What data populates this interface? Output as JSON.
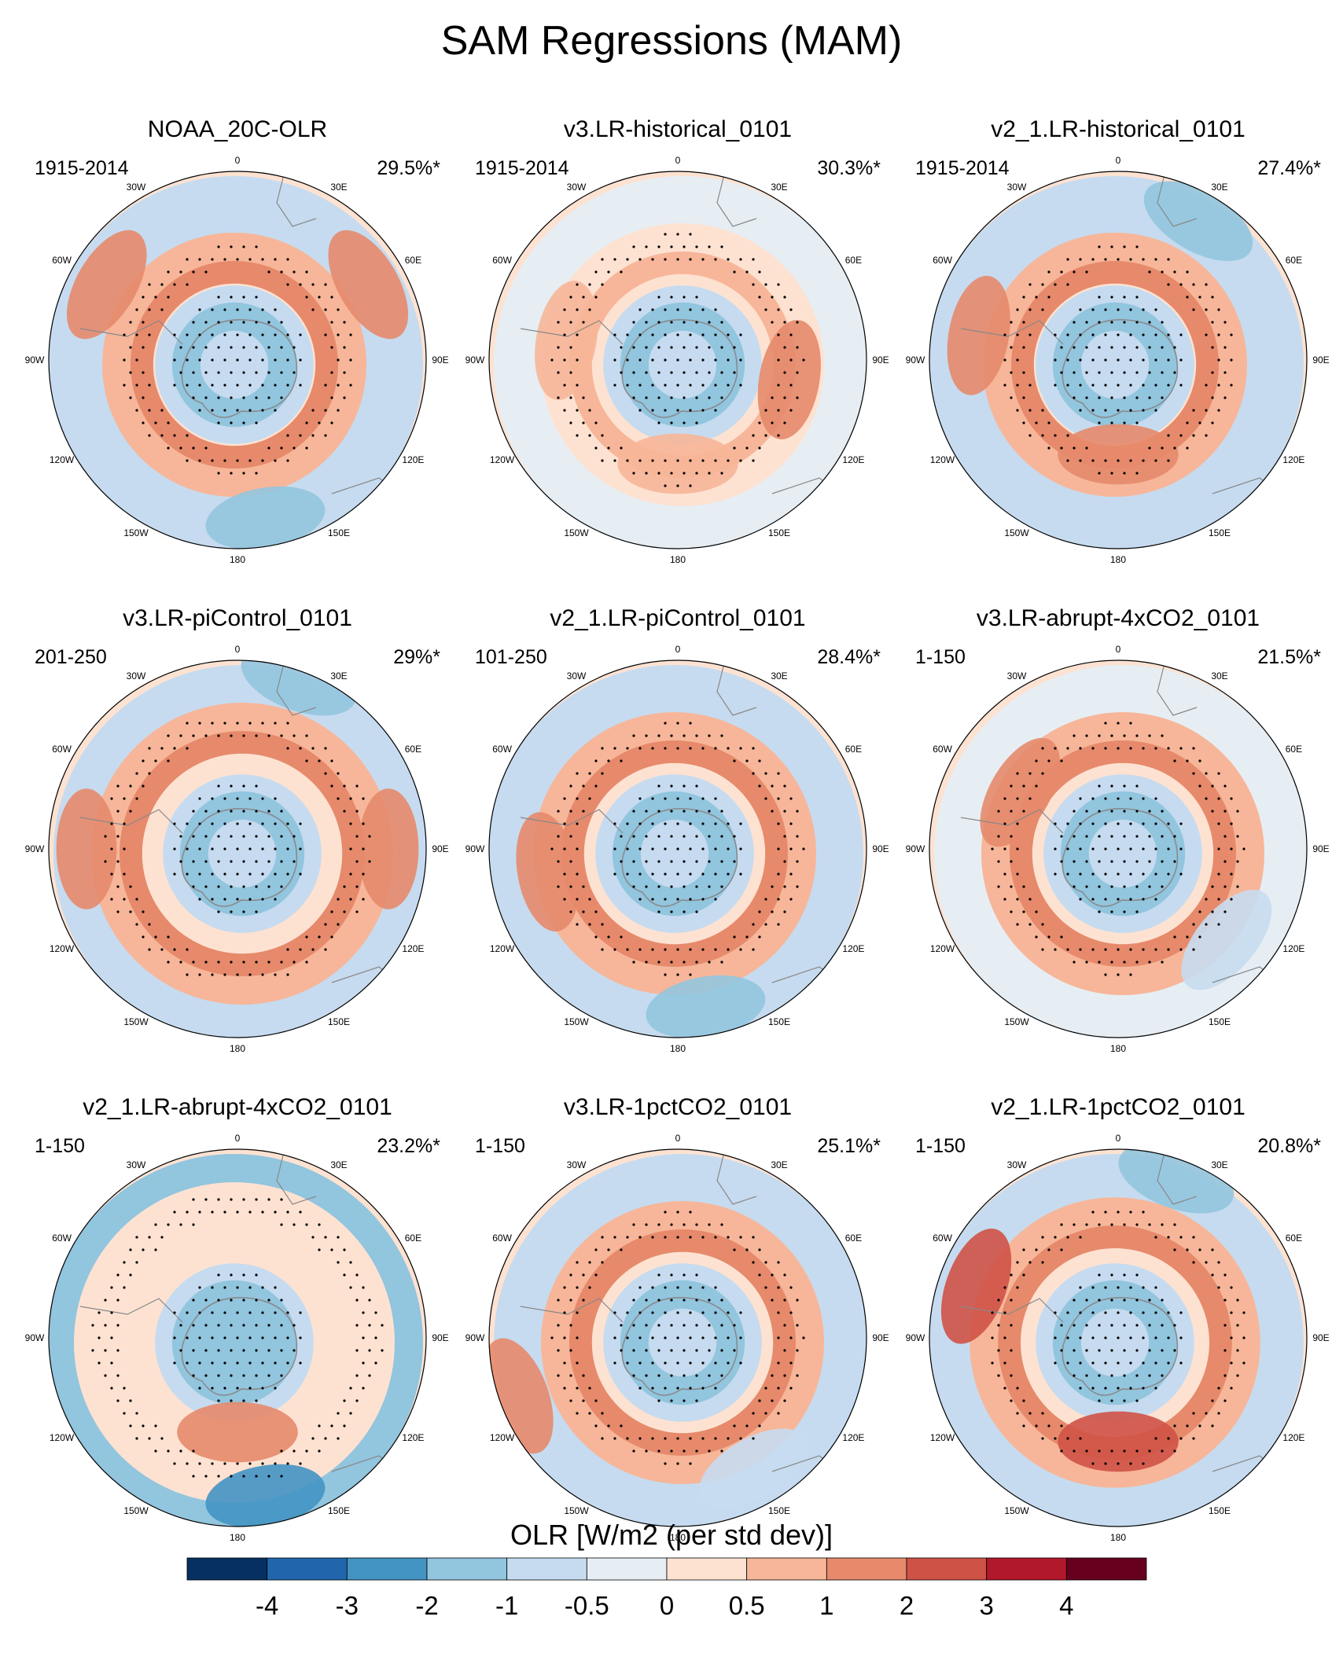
{
  "title": "SAM Regressions (MAM)",
  "colorbar": {
    "label": "OLR [W/m2 (per std dev)]",
    "ticks": [
      "-4",
      "-3",
      "-2",
      "-1",
      "-0.5",
      "0",
      "0.5",
      "1",
      "2",
      "3",
      "4"
    ],
    "colors": [
      "#053061",
      "#2166ac",
      "#4393c3",
      "#92c5de",
      "#c6dbef",
      "#e6eef4",
      "#fde2d2",
      "#f7b699",
      "#e68a6b",
      "#cf5247",
      "#b2182b",
      "#67001f"
    ]
  },
  "lon_labels": [
    "0",
    "30E",
    "60E",
    "90E",
    "120E",
    "150E",
    "180",
    "150W",
    "120W",
    "90W",
    "60W",
    "30W"
  ],
  "panels": [
    {
      "title": "NOAA_20C-OLR",
      "period": "1915-2014",
      "variance": "29.5%*"
    },
    {
      "title": "v3.LR-historical_0101",
      "period": "1915-2014",
      "variance": "30.3%*"
    },
    {
      "title": "v2_1.LR-historical_0101",
      "period": "1915-2014",
      "variance": "27.4%*"
    },
    {
      "title": "v3.LR-piControl_0101",
      "period": "201-250",
      "variance": "29%*"
    },
    {
      "title": "v2_1.LR-piControl_0101",
      "period": "101-250",
      "variance": "28.4%*"
    },
    {
      "title": "v3.LR-abrupt-4xCO2_0101",
      "period": "1-150",
      "variance": "21.5%*"
    },
    {
      "title": "v2_1.LR-abrupt-4xCO2_0101",
      "period": "1-150",
      "variance": "23.2%*"
    },
    {
      "title": "v3.LR-1pctCO2_0101",
      "period": "1-150",
      "variance": "25.1%*"
    },
    {
      "title": "v2_1.LR-1pctCO2_0101",
      "period": "1-150",
      "variance": "20.8%*"
    }
  ]
}
